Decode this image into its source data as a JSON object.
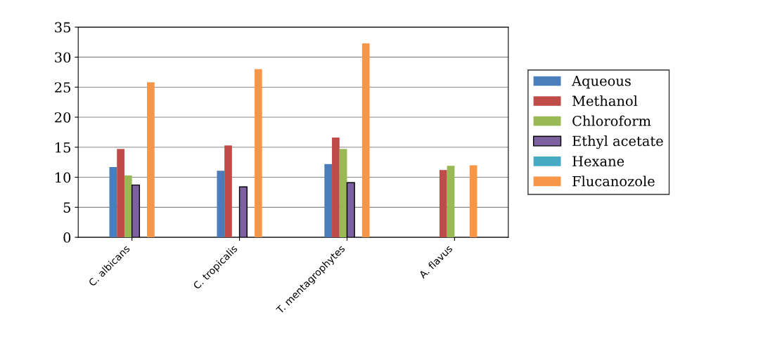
{
  "chart_data": {
    "type": "bar",
    "categories": [
      "C. albicans",
      "C. tropicalis",
      "T. mentagrophytes",
      "A. flavus"
    ],
    "series": [
      {
        "name": "Aqueous",
        "color": "#4a7ebb",
        "values": [
          11.7,
          11.1,
          12.2,
          null
        ]
      },
      {
        "name": "Methanol",
        "color": "#be4b48",
        "values": [
          14.7,
          15.3,
          16.6,
          11.2
        ]
      },
      {
        "name": "Chloroform",
        "color": "#98b954",
        "values": [
          10.3,
          null,
          14.7,
          11.9
        ]
      },
      {
        "name": "Ethyl acetate",
        "color": "#7d60a0",
        "values": [
          8.7,
          8.4,
          9.1,
          null
        ]
      },
      {
        "name": "Hexane",
        "color": "#46aac5",
        "values": [
          null,
          null,
          null,
          null
        ]
      },
      {
        "name": "Flucanozole",
        "color": "#f79646",
        "values": [
          25.8,
          28.0,
          32.3,
          12.0
        ]
      }
    ],
    "ylim": [
      0,
      35
    ],
    "yticks": [
      0,
      5,
      10,
      15,
      20,
      25,
      30,
      35
    ],
    "grid": "y",
    "legend": "right"
  }
}
